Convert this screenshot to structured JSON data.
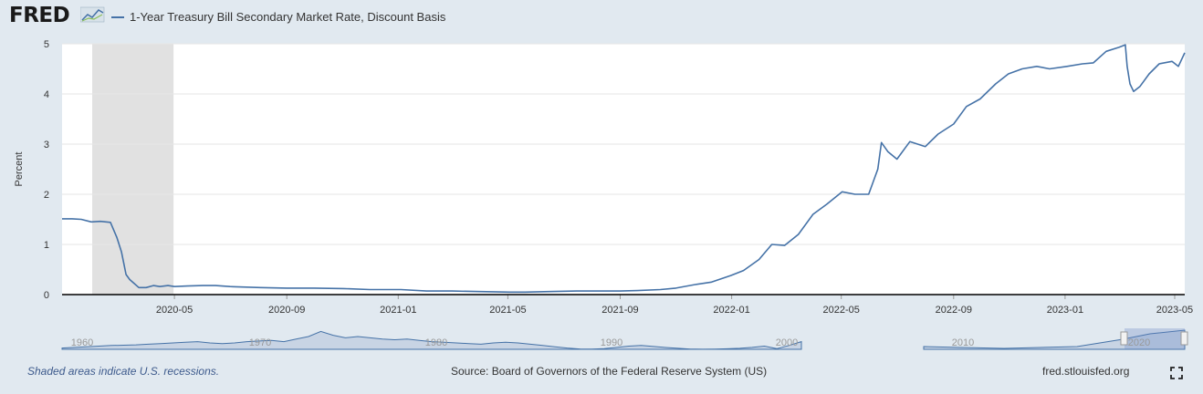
{
  "header": {
    "logo_text": "FRED",
    "series_title": "1-Year Treasury Bill Secondary Market Rate, Discount Basis"
  },
  "footer": {
    "recession_note": "Shaded areas indicate U.S. recessions.",
    "source": "Source: Board of Governors of the Federal Reserve System (US)",
    "url": "fred.stlouisfed.org"
  },
  "colors": {
    "line": "#4572a7",
    "recession_shade": "#e1e1e1",
    "plot_bg": "#ffffff",
    "page_bg": "#e1e9f0"
  },
  "chart_data": {
    "type": "line",
    "ylabel": "Percent",
    "ylim": [
      0,
      5
    ],
    "yticks": [
      "0",
      "1",
      "2",
      "3",
      "4",
      "5"
    ],
    "x_range": [
      "2019-12-30",
      "2023-05-12"
    ],
    "x_tick_labels": [
      "2020-05",
      "2020-09",
      "2021-01",
      "2021-05",
      "2021-09",
      "2022-01",
      "2022-05",
      "2022-09",
      "2023-01",
      "2023-05"
    ],
    "x_tick_dates": [
      "2020-05-01",
      "2020-09-01",
      "2021-01-01",
      "2021-05-01",
      "2021-09-01",
      "2022-01-01",
      "2022-05-01",
      "2022-09-01",
      "2023-01-01",
      "2023-05-01"
    ],
    "recession": {
      "start": "2020-02-01",
      "end": "2020-04-30"
    },
    "grid": true,
    "series": [
      {
        "name": "1-Year Treasury Bill Secondary Market Rate, Discount Basis",
        "points": [
          [
            "2019-12-30",
            1.51
          ],
          [
            "2020-01-10",
            1.51
          ],
          [
            "2020-01-20",
            1.5
          ],
          [
            "2020-01-31",
            1.45
          ],
          [
            "2020-02-10",
            1.46
          ],
          [
            "2020-02-21",
            1.44
          ],
          [
            "2020-02-28",
            1.14
          ],
          [
            "2020-03-04",
            0.85
          ],
          [
            "2020-03-09",
            0.4
          ],
          [
            "2020-03-13",
            0.3
          ],
          [
            "2020-03-18",
            0.22
          ],
          [
            "2020-03-23",
            0.14
          ],
          [
            "2020-03-31",
            0.14
          ],
          [
            "2020-04-08",
            0.18
          ],
          [
            "2020-04-15",
            0.16
          ],
          [
            "2020-04-24",
            0.18
          ],
          [
            "2020-05-01",
            0.16
          ],
          [
            "2020-05-15",
            0.17
          ],
          [
            "2020-06-01",
            0.18
          ],
          [
            "2020-06-15",
            0.18
          ],
          [
            "2020-07-01",
            0.16
          ],
          [
            "2020-08-03",
            0.14
          ],
          [
            "2020-09-01",
            0.13
          ],
          [
            "2020-10-01",
            0.13
          ],
          [
            "2020-11-02",
            0.12
          ],
          [
            "2020-12-01",
            0.1
          ],
          [
            "2021-01-04",
            0.1
          ],
          [
            "2021-02-01",
            0.07
          ],
          [
            "2021-03-01",
            0.07
          ],
          [
            "2021-04-01",
            0.06
          ],
          [
            "2021-05-03",
            0.05
          ],
          [
            "2021-05-20",
            0.05
          ],
          [
            "2021-06-15",
            0.06
          ],
          [
            "2021-07-15",
            0.07
          ],
          [
            "2021-08-16",
            0.07
          ],
          [
            "2021-09-01",
            0.07
          ],
          [
            "2021-09-20",
            0.08
          ],
          [
            "2021-10-15",
            0.1
          ],
          [
            "2021-11-01",
            0.13
          ],
          [
            "2021-11-22",
            0.2
          ],
          [
            "2021-12-10",
            0.25
          ],
          [
            "2021-12-31",
            0.38
          ],
          [
            "2022-01-14",
            0.48
          ],
          [
            "2022-01-31",
            0.7
          ],
          [
            "2022-02-14",
            1.0
          ],
          [
            "2022-02-28",
            0.98
          ],
          [
            "2022-03-15",
            1.2
          ],
          [
            "2022-03-31",
            1.6
          ],
          [
            "2022-04-15",
            1.8
          ],
          [
            "2022-05-02",
            2.05
          ],
          [
            "2022-05-16",
            2.0
          ],
          [
            "2022-05-31",
            2.0
          ],
          [
            "2022-06-10",
            2.5
          ],
          [
            "2022-06-14",
            3.03
          ],
          [
            "2022-06-21",
            2.85
          ],
          [
            "2022-07-01",
            2.7
          ],
          [
            "2022-07-15",
            3.05
          ],
          [
            "2022-08-01",
            2.95
          ],
          [
            "2022-08-15",
            3.2
          ],
          [
            "2022-09-01",
            3.4
          ],
          [
            "2022-09-15",
            3.75
          ],
          [
            "2022-09-30",
            3.9
          ],
          [
            "2022-10-17",
            4.2
          ],
          [
            "2022-10-31",
            4.4
          ],
          [
            "2022-11-15",
            4.5
          ],
          [
            "2022-12-01",
            4.55
          ],
          [
            "2022-12-15",
            4.5
          ],
          [
            "2023-01-03",
            4.55
          ],
          [
            "2023-01-20",
            4.6
          ],
          [
            "2023-02-01",
            4.62
          ],
          [
            "2023-02-15",
            4.85
          ],
          [
            "2023-03-01",
            4.93
          ],
          [
            "2023-03-08",
            4.98
          ],
          [
            "2023-03-10",
            4.55
          ],
          [
            "2023-03-13",
            4.2
          ],
          [
            "2023-03-17",
            4.05
          ],
          [
            "2023-03-24",
            4.15
          ],
          [
            "2023-04-03",
            4.4
          ],
          [
            "2023-04-14",
            4.6
          ],
          [
            "2023-04-28",
            4.65
          ],
          [
            "2023-05-05",
            4.55
          ],
          [
            "2023-05-12",
            4.82
          ]
        ]
      }
    ],
    "navigator": {
      "labels": [
        "1960",
        "1970",
        "1980",
        "1990",
        "2000",
        "2010",
        "2020"
      ]
    }
  }
}
